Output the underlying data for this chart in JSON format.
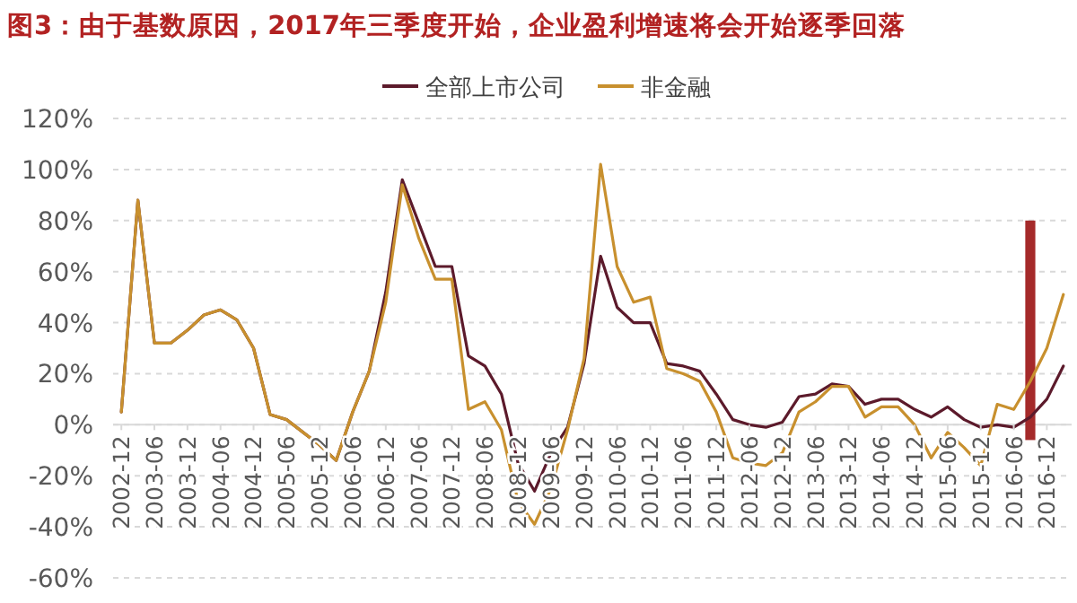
{
  "chart_data": {
    "type": "line",
    "title": "图3：由于基数原因，2017年三季度开始，企业盈利增速将会开始逐季回落",
    "categories": [
      "2002-12",
      null,
      "2003-06",
      null,
      "2003-12",
      null,
      "2004-06",
      null,
      "2004-12",
      null,
      "2005-06",
      null,
      "2005-12",
      null,
      "2006-06",
      null,
      "2006-12",
      null,
      "2007-06",
      null,
      "2007-12",
      null,
      "2008-06",
      null,
      "2008-12",
      null,
      "2009-06",
      null,
      "2009-12",
      null,
      "2010-06",
      null,
      "2010-12",
      null,
      "2011-06",
      null,
      "2011-12",
      null,
      "2012-06",
      null,
      "2012-12",
      null,
      "2013-06",
      null,
      "2013-12",
      null,
      "2014-06",
      null,
      "2014-12",
      null,
      "2015-06",
      null,
      "2015-12",
      null,
      "2016-06",
      null,
      "2016-12",
      null
    ],
    "series": [
      {
        "name": "全部上市公司",
        "color": "#5c1a2b",
        "values": [
          5,
          88,
          32,
          32,
          37,
          43,
          45,
          41,
          30,
          4,
          2,
          -3,
          -8,
          -14,
          5,
          21,
          52,
          96,
          79,
          62,
          62,
          27,
          23,
          12,
          -15,
          -26,
          -11,
          -1,
          24,
          66,
          46,
          40,
          40,
          24,
          23,
          21,
          12,
          2,
          0,
          -1,
          1,
          11,
          12,
          16,
          15,
          8,
          10,
          10,
          6,
          3,
          7,
          2,
          -1,
          0,
          -1,
          3,
          10,
          23
        ]
      },
      {
        "name": "非金融",
        "color": "#c8902e",
        "values": [
          5,
          88,
          32,
          32,
          37,
          43,
          45,
          41,
          30,
          4,
          2,
          -3,
          -8,
          -14,
          5,
          21,
          48,
          94,
          73,
          57,
          57,
          6,
          9,
          -2,
          -30,
          -39,
          -25,
          -2,
          26,
          102,
          62,
          48,
          50,
          22,
          20,
          17,
          5,
          -13,
          -15,
          -16,
          -11,
          5,
          9,
          15,
          15,
          3,
          7,
          7,
          0,
          -13,
          -3,
          -9,
          -16,
          8,
          6,
          17,
          30,
          51
        ]
      },
      {
        "type": "bar",
        "color": "#a52a2a",
        "values": [
          null,
          null,
          null,
          null,
          null,
          null,
          null,
          null,
          null,
          null,
          null,
          null,
          null,
          null,
          null,
          null,
          null,
          null,
          null,
          null,
          null,
          null,
          null,
          null,
          null,
          null,
          null,
          null,
          null,
          null,
          null,
          null,
          null,
          null,
          null,
          null,
          null,
          null,
          null,
          null,
          null,
          null,
          null,
          null,
          null,
          null,
          null,
          null,
          null,
          null,
          null,
          null,
          null,
          null,
          null,
          86,
          null,
          null
        ],
        "base": [
          null,
          null,
          null,
          null,
          null,
          null,
          null,
          null,
          null,
          null,
          null,
          null,
          null,
          null,
          null,
          null,
          null,
          null,
          null,
          null,
          null,
          null,
          null,
          null,
          null,
          null,
          null,
          null,
          null,
          null,
          null,
          null,
          null,
          null,
          null,
          null,
          null,
          null,
          null,
          null,
          null,
          null,
          null,
          null,
          null,
          null,
          null,
          null,
          null,
          null,
          null,
          null,
          null,
          null,
          null,
          -6,
          null,
          null
        ]
      }
    ],
    "ylim": [
      -60,
      120
    ],
    "yticks": [
      {
        "value": -60,
        "label": "-60%"
      },
      {
        "value": -40,
        "label": "-40%"
      },
      {
        "value": -20,
        "label": "-20%"
      },
      {
        "value": 0,
        "label": "0%"
      },
      {
        "value": 20,
        "label": "20%"
      },
      {
        "value": 40,
        "label": "40%"
      },
      {
        "value": 60,
        "label": "60%"
      },
      {
        "value": 80,
        "label": "80%"
      },
      {
        "value": 100,
        "label": "100%"
      },
      {
        "value": 120,
        "label": "120%"
      }
    ],
    "grid": "y",
    "legend": "top"
  }
}
